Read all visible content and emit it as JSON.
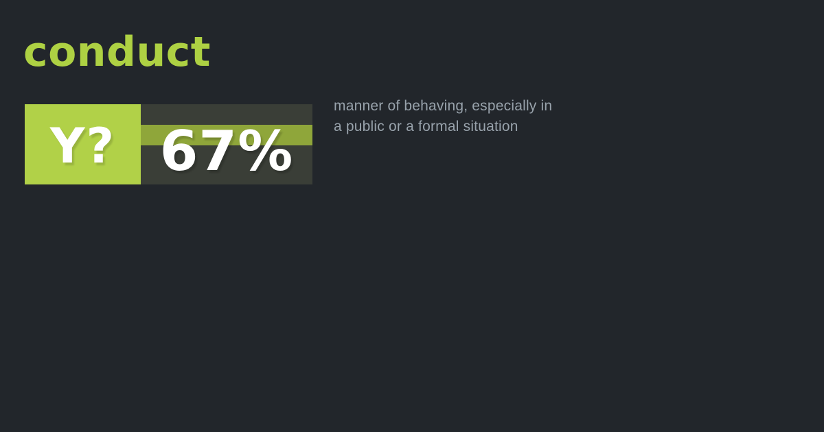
{
  "card": {
    "background_color": "#22262b",
    "accent_color": "#aed143",
    "title": "conduct",
    "poll": {
      "label": "Y?",
      "value": "67%",
      "label_bg_color": "#b1d148",
      "value_bg_color": "#3a3e37",
      "stripe_color": "#8fa63a",
      "text_color": "#ffffff"
    },
    "definition": {
      "color": "#98a2ab",
      "lines": [
        "manner of behaving, especially in",
        "a public or a formal situation"
      ],
      "full_text": "manner of behaving, especially in a public or a formal situation"
    }
  }
}
